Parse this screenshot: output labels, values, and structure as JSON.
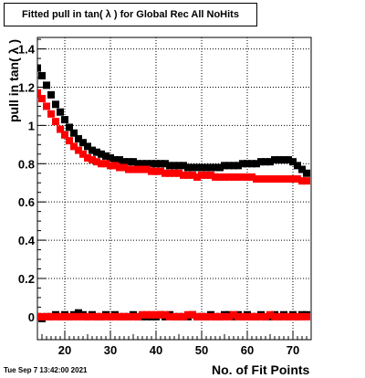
{
  "chart_data": {
    "type": "scatter",
    "title": "Fitted pull in tan( λ ) for Global Rec All NoHits",
    "xlabel": "No. of Fit Points",
    "ylabel": "pull in tan( λ )",
    "xlim": [
      14,
      74
    ],
    "ylim": [
      -0.12,
      1.46
    ],
    "xticks": [
      20,
      30,
      40,
      50,
      60,
      70
    ],
    "yticks": [
      0,
      0.2,
      0.4,
      0.6,
      0.8,
      1,
      1.2,
      1.4
    ],
    "ytick_labels": [
      "0",
      "0.2",
      "0.4",
      "0.6",
      "0.8",
      "1",
      "1.2",
      "1.4"
    ],
    "grid": true,
    "series": [
      {
        "color": "#000000",
        "marker": "square",
        "x": [
          14,
          15,
          16,
          17,
          18,
          19,
          20,
          21,
          22,
          23,
          24,
          25,
          26,
          27,
          28,
          29,
          30,
          31,
          32,
          33,
          34,
          35,
          36,
          37,
          38,
          39,
          40,
          41,
          42,
          43,
          44,
          45,
          46,
          47,
          48,
          49,
          50,
          51,
          52,
          53,
          54,
          55,
          56,
          57,
          58,
          59,
          60,
          61,
          62,
          63,
          64,
          65,
          66,
          67,
          68,
          69,
          70,
          71,
          72,
          73
        ],
        "y": [
          1.3,
          1.26,
          1.21,
          1.16,
          1.11,
          1.07,
          1.03,
          0.99,
          0.96,
          0.93,
          0.91,
          0.89,
          0.87,
          0.86,
          0.85,
          0.84,
          0.83,
          0.82,
          0.82,
          0.81,
          0.81,
          0.81,
          0.8,
          0.8,
          0.8,
          0.8,
          0.8,
          0.8,
          0.8,
          0.79,
          0.79,
          0.79,
          0.79,
          0.78,
          0.78,
          0.78,
          0.78,
          0.78,
          0.78,
          0.78,
          0.78,
          0.79,
          0.79,
          0.79,
          0.79,
          0.8,
          0.8,
          0.8,
          0.8,
          0.81,
          0.81,
          0.81,
          0.82,
          0.82,
          0.82,
          0.82,
          0.81,
          0.79,
          0.77,
          0.75
        ]
      },
      {
        "color": "#ff0000",
        "marker": "square",
        "x": [
          14,
          15,
          16,
          17,
          18,
          19,
          20,
          21,
          22,
          23,
          24,
          25,
          26,
          27,
          28,
          29,
          30,
          31,
          32,
          33,
          34,
          35,
          36,
          37,
          38,
          39,
          40,
          41,
          42,
          43,
          44,
          45,
          46,
          47,
          48,
          49,
          50,
          51,
          52,
          53,
          54,
          55,
          56,
          57,
          58,
          59,
          60,
          61,
          62,
          63,
          64,
          65,
          66,
          67,
          68,
          69,
          70,
          71,
          72,
          73
        ],
        "y": [
          1.17,
          1.14,
          1.1,
          1.06,
          1.02,
          0.98,
          0.95,
          0.92,
          0.89,
          0.87,
          0.85,
          0.83,
          0.82,
          0.81,
          0.8,
          0.8,
          0.79,
          0.79,
          0.78,
          0.78,
          0.77,
          0.77,
          0.77,
          0.77,
          0.77,
          0.76,
          0.76,
          0.76,
          0.75,
          0.75,
          0.75,
          0.75,
          0.74,
          0.74,
          0.74,
          0.73,
          0.74,
          0.74,
          0.74,
          0.73,
          0.73,
          0.73,
          0.73,
          0.73,
          0.73,
          0.73,
          0.73,
          0.73,
          0.72,
          0.72,
          0.72,
          0.72,
          0.72,
          0.72,
          0.72,
          0.72,
          0.72,
          0.72,
          0.71,
          0.71
        ]
      },
      {
        "color": "#000000",
        "marker": "square",
        "x": [
          14,
          15,
          16,
          17,
          18,
          19,
          20,
          21,
          22,
          23,
          24,
          25,
          26,
          27,
          28,
          29,
          30,
          31,
          32,
          33,
          34,
          35,
          36,
          37,
          38,
          39,
          40,
          41,
          42,
          43,
          44,
          45,
          46,
          47,
          48,
          49,
          50,
          51,
          52,
          53,
          54,
          55,
          56,
          57,
          58,
          59,
          60,
          61,
          62,
          63,
          64,
          65,
          66,
          67,
          68,
          69,
          70,
          71,
          72,
          73
        ],
        "y": [
          0.0,
          -0.01,
          0.0,
          0.0,
          0.01,
          0.0,
          0.01,
          0.0,
          0.01,
          0.02,
          0.01,
          0.0,
          0.01,
          0.0,
          0.0,
          0.01,
          0.0,
          0.01,
          0.0,
          0.0,
          0.0,
          0.01,
          0.0,
          0.0,
          0.0,
          0.0,
          0.0,
          0.01,
          0.0,
          0.01,
          0.0,
          0.0,
          0.0,
          0.0,
          0.01,
          0.0,
          0.0,
          0.0,
          0.01,
          0.0,
          0.0,
          0.01,
          0.01,
          0.0,
          0.01,
          0.0,
          0.01,
          0.0,
          0.0,
          0.01,
          0.0,
          0.0,
          0.01,
          0.0,
          0.01,
          0.0,
          0.01,
          0.0,
          0.01,
          0.01
        ]
      },
      {
        "color": "#ff0000",
        "marker": "square",
        "x": [
          14,
          15,
          16,
          17,
          18,
          19,
          20,
          21,
          22,
          23,
          24,
          25,
          26,
          27,
          28,
          29,
          30,
          31,
          32,
          33,
          34,
          35,
          36,
          37,
          38,
          39,
          40,
          41,
          42,
          43,
          44,
          45,
          46,
          47,
          48,
          49,
          50,
          51,
          52,
          53,
          54,
          55,
          56,
          57,
          58,
          59,
          60,
          61,
          62,
          63,
          64,
          65,
          66,
          67,
          68,
          69,
          70,
          71,
          72,
          73
        ],
        "y": [
          0.0,
          0.0,
          0.0,
          0.0,
          0.0,
          0.0,
          0.0,
          0.0,
          0.0,
          0.0,
          0.0,
          0.0,
          0.0,
          0.0,
          0.0,
          0.0,
          0.0,
          0.0,
          0.0,
          0.0,
          0.0,
          0.0,
          0.0,
          0.01,
          0.01,
          0.01,
          0.01,
          0.01,
          0.01,
          0.0,
          0.0,
          0.0,
          0.0,
          0.01,
          0.01,
          0.0,
          0.0,
          0.0,
          0.0,
          0.0,
          0.0,
          0.0,
          0.0,
          0.01,
          0.0,
          0.0,
          0.0,
          0.0,
          0.0,
          0.0,
          0.0,
          0.01,
          0.0,
          0.0,
          0.0,
          0.0,
          0.0,
          0.0,
          0.0,
          0.0
        ]
      }
    ]
  },
  "footer": {
    "timestamp": "Tue Sep  7 13:42:00 2021"
  }
}
